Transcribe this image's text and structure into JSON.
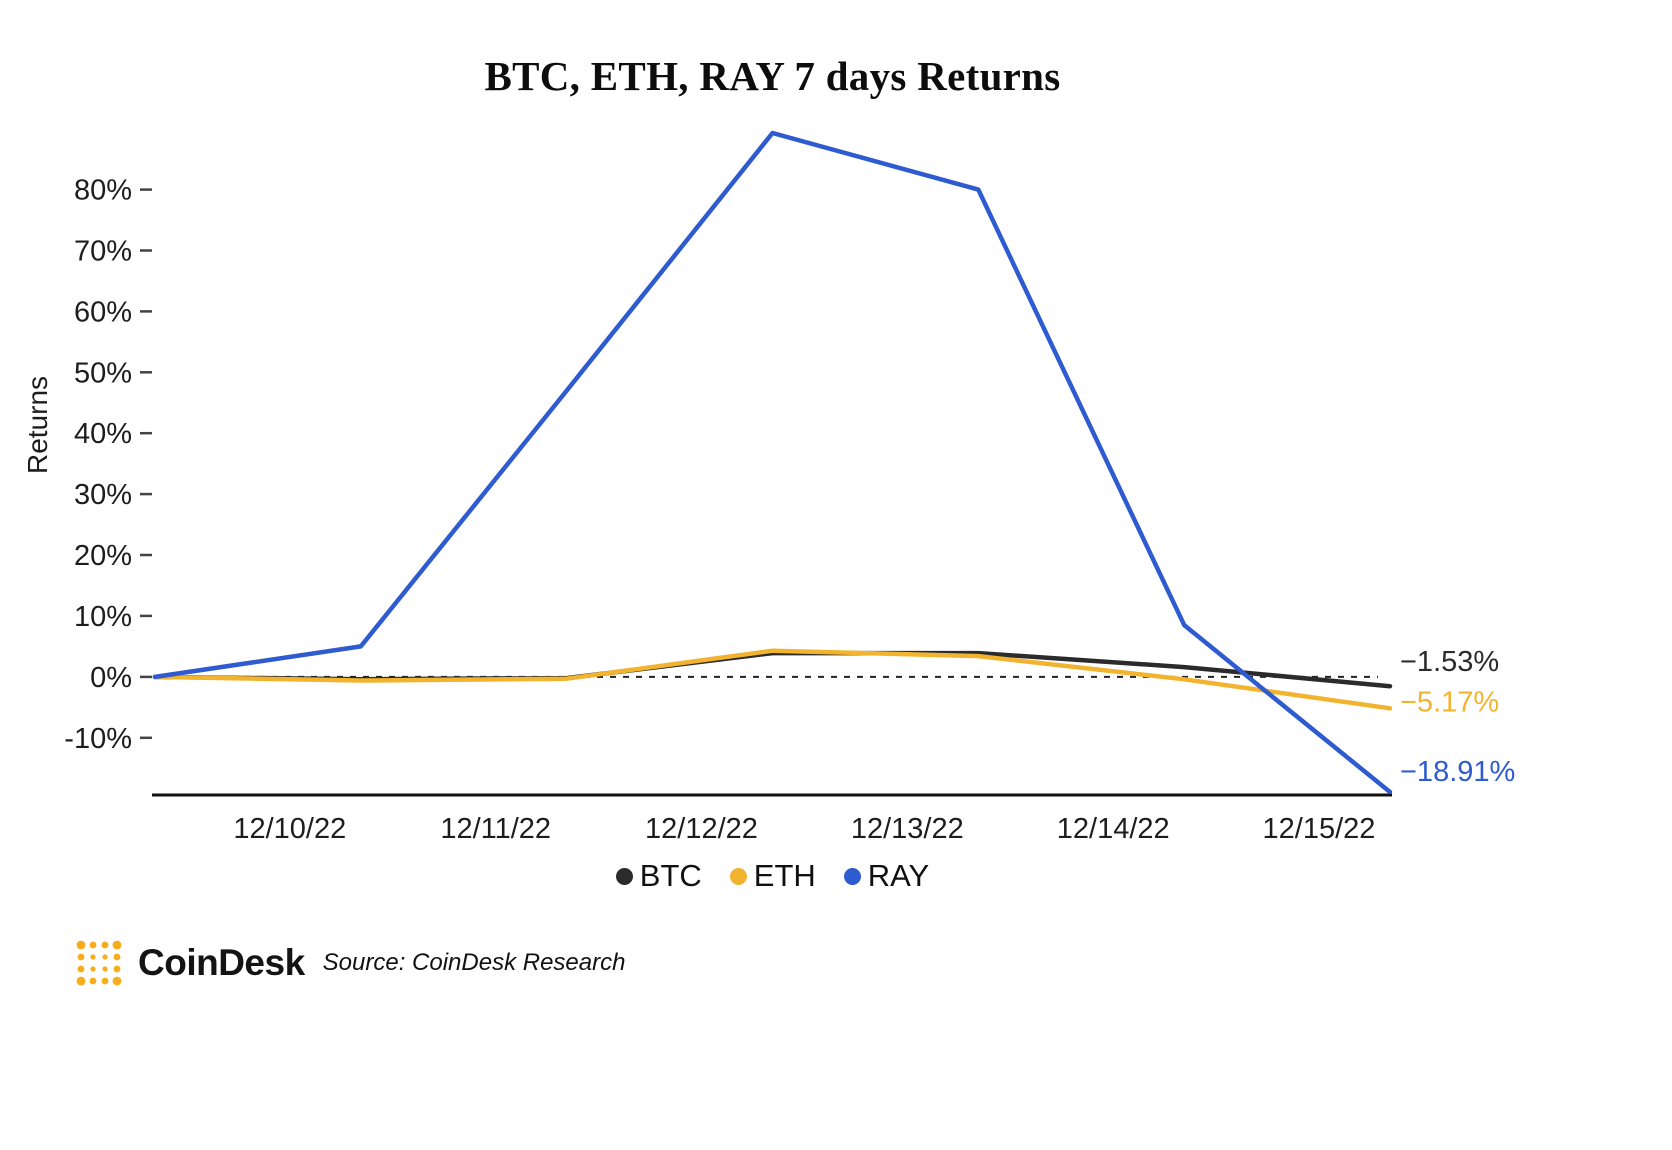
{
  "chart_data": {
    "type": "line",
    "title": "BTC, ETH, RAY 7 days Returns",
    "ylabel": "Returns",
    "xlabel": "",
    "x_tick_labels": [
      "12/10/22",
      "12/11/22",
      "12/12/22",
      "12/13/22",
      "12/14/22",
      "12/15/22"
    ],
    "y_ticks": [
      80,
      70,
      60,
      50,
      40,
      30,
      20,
      10,
      0,
      -10
    ],
    "y_tick_suffix": "%",
    "ylim": [
      -19.4,
      89.3
    ],
    "grid": false,
    "zero_reference_line": "dashed",
    "legend_position": "bottom",
    "series": [
      {
        "name": "BTC",
        "color": "#2b2b2b",
        "values": [
          0,
          -0.4,
          -0.2,
          3.9,
          3.9,
          1.6,
          -1.53
        ],
        "end_label": "−1.53%"
      },
      {
        "name": "ETH",
        "color": "#f2b32e",
        "values": [
          0,
          -0.6,
          -0.3,
          4.3,
          3.4,
          -0.4,
          -5.17
        ],
        "end_label": "−5.17%"
      },
      {
        "name": "RAY",
        "color": "#2e5bd0",
        "values": [
          0,
          5,
          47,
          89.3,
          80,
          8.5,
          -18.91
        ],
        "end_label": "−18.91%"
      }
    ]
  },
  "footer": {
    "logo_icon": "coindesk-dots-logo",
    "logo_color": "#F7AC1B",
    "brand": "CoinDesk",
    "source": "Source: CoinDesk Research"
  }
}
